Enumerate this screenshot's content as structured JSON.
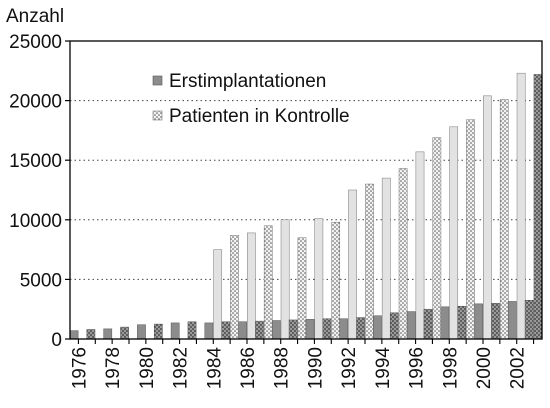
{
  "chart_data": {
    "type": "bar",
    "ylabel": "Anzahl",
    "ylim": [
      0,
      25000
    ],
    "yticks": [
      "0",
      "5000",
      "10000",
      "15000",
      "20000",
      "25000"
    ],
    "grid": "horizontal dotted",
    "legend_position": "top-left inside plot",
    "categories": [
      "1976",
      "1977",
      "1978",
      "1979",
      "1980",
      "1981",
      "1982",
      "1983",
      "1984",
      "1985",
      "1986",
      "1987",
      "1988",
      "1989",
      "1990",
      "1991",
      "1992",
      "1993",
      "1994",
      "1995",
      "1996",
      "1997",
      "1998",
      "1999",
      "2000",
      "2001",
      "2002",
      "2003"
    ],
    "xtick_labels": [
      "1976",
      "1978",
      "1980",
      "1982",
      "1984",
      "1986",
      "1988",
      "1990",
      "1992",
      "1994",
      "1996",
      "1998",
      "2000",
      "2002"
    ],
    "series": [
      {
        "name": "Erstimplantationen",
        "color": "#8c8c8c",
        "values": [
          700,
          800,
          850,
          1000,
          1200,
          1250,
          1350,
          1450,
          1350,
          1450,
          1450,
          1500,
          1550,
          1600,
          1650,
          1700,
          1700,
          1800,
          1950,
          2200,
          2300,
          2500,
          2700,
          2750,
          2950,
          3000,
          3150,
          3250
        ]
      },
      {
        "name": "Patienten in Kontrolle",
        "color": "#e2e2e2",
        "values": [
          null,
          null,
          null,
          null,
          null,
          null,
          null,
          null,
          7500,
          8700,
          8900,
          9500,
          10000,
          8500,
          10100,
          9800,
          12500,
          13000,
          13500,
          14300,
          15700,
          16900,
          17800,
          18400,
          20400,
          20100,
          22300,
          22200
        ]
      }
    ]
  }
}
